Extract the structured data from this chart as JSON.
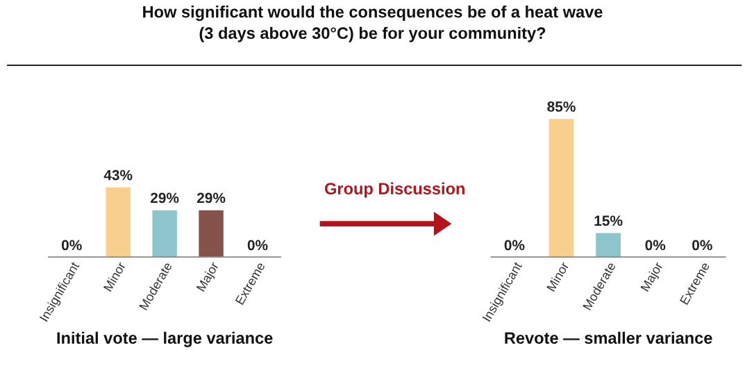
{
  "chart_data": [
    {
      "type": "bar",
      "title": "How significant would the consequences be of a heat wave\n(3 days above 30°C) be for your community?",
      "xlabel": "Initial vote — large variance",
      "categories": [
        "Insignificant",
        "Minor",
        "Moderate",
        "Major",
        "Extreme"
      ],
      "values": [
        0,
        43,
        29,
        29,
        0
      ],
      "colors": [
        null,
        "#f9cf8e",
        "#8ec5cd",
        "#85534b",
        null
      ],
      "data_labels": true,
      "value_labels": [
        "0%",
        "43%",
        "29%",
        "29%",
        "0%"
      ],
      "tick_labels": "x",
      "annotations": [
        "Group Discussion"
      ]
    },
    {
      "type": "bar",
      "xlabel": "Revote — smaller variance",
      "categories": [
        "Insignificant",
        "Minor",
        "Moderate",
        "Major",
        "Extreme"
      ],
      "values": [
        0,
        85,
        15,
        0,
        0
      ],
      "colors": [
        null,
        "#f9cf8e",
        "#8ec5cd",
        null,
        null
      ],
      "data_labels": true,
      "value_labels": [
        "0%",
        "85%",
        "15%",
        "0%",
        "0%"
      ],
      "tick_labels": "x"
    }
  ]
}
